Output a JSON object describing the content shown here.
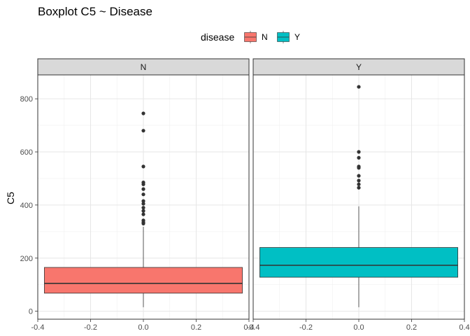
{
  "chart_data": {
    "type": "boxplot",
    "title": "Boxplot C5 ~ Disease",
    "ylabel": "C5",
    "xlabel": "",
    "legend": {
      "title": "disease",
      "position": "top",
      "entries": [
        {
          "label": "N",
          "color": "#F8766D"
        },
        {
          "label": "Y",
          "color": "#00BFC4"
        }
      ]
    },
    "xlim": [
      -0.4,
      0.4
    ],
    "x_ticks": [
      -0.4,
      -0.2,
      0.0,
      0.2,
      0.4
    ],
    "x_tick_labels": [
      "-0.4",
      "-0.2",
      "0.0",
      "0.2",
      "0.4"
    ],
    "ylim": [
      -30,
      890
    ],
    "y_ticks": [
      0,
      200,
      400,
      600,
      800
    ],
    "grid": true,
    "box_x_range": [
      -0.375,
      0.375
    ],
    "panels": [
      {
        "strip": "N",
        "fill": "#F8766D",
        "whisker_low": 15,
        "q1": 68,
        "median": 105,
        "q3": 165,
        "whisker_high": 318,
        "outliers": [
          330,
          335,
          342,
          365,
          378,
          390,
          405,
          415,
          440,
          460,
          478,
          485,
          545,
          680,
          745
        ]
      },
      {
        "strip": "Y",
        "fill": "#00BFC4",
        "whisker_low": 15,
        "q1": 128,
        "median": 173,
        "q3": 240,
        "whisker_high": 395,
        "outliers": [
          465,
          478,
          492,
          510,
          540,
          545,
          578,
          600,
          845
        ]
      }
    ]
  }
}
